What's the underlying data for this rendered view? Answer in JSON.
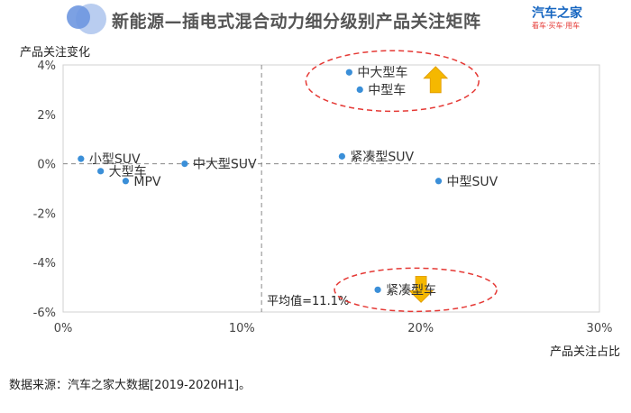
{
  "header": {
    "title": "新能源—插电式混合动力细分级别产品关注矩阵",
    "brand_name": "汽车之家",
    "brand_tagline": "看车·买车·用车"
  },
  "footer": {
    "source": "数据来源：汽车之家大数据[2019-2020H1]。"
  },
  "colors": {
    "point": "#3b8fd8",
    "arrow": "#f5b800",
    "ellipse": "#e53935",
    "avg_line": "#888888"
  },
  "chart_data": {
    "type": "scatter",
    "xlabel": "产品关注占比",
    "ylabel": "产品关注变化",
    "xlim": [
      0,
      30
    ],
    "ylim": [
      -6,
      4
    ],
    "x_ticks": [
      0,
      10,
      20,
      30
    ],
    "x_tick_labels": [
      "0%",
      "10%",
      "20%",
      "30%"
    ],
    "y_ticks": [
      -6,
      -4,
      -2,
      0,
      2,
      4
    ],
    "y_tick_labels": [
      "-6%",
      "-4%",
      "-2%",
      "0%",
      "2%",
      "4%"
    ],
    "grid": false,
    "average_line": {
      "x": 11.1,
      "label": "平均值=11.1%"
    },
    "points": [
      {
        "label": "小型SUV",
        "x": 1.0,
        "y": 0.2
      },
      {
        "label": "大型车",
        "x": 2.1,
        "y": -0.3
      },
      {
        "label": "MPV",
        "x": 3.5,
        "y": -0.7
      },
      {
        "label": "中大型SUV",
        "x": 6.8,
        "y": 0.0
      },
      {
        "label": "紧凑型SUV",
        "x": 15.6,
        "y": 0.3
      },
      {
        "label": "中大型车",
        "x": 16.0,
        "y": 3.7
      },
      {
        "label": "中型车",
        "x": 16.6,
        "y": 3.0
      },
      {
        "label": "中型SUV",
        "x": 21.0,
        "y": -0.7
      },
      {
        "label": "紧凑型车",
        "x": 17.6,
        "y": -5.1
      }
    ],
    "highlights": [
      {
        "direction": "up",
        "members": [
          "中大型车",
          "中型车"
        ]
      },
      {
        "direction": "down",
        "members": [
          "紧凑型车"
        ]
      }
    ]
  }
}
